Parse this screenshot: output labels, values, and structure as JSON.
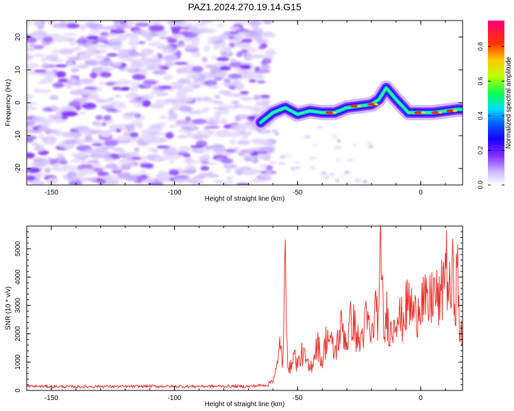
{
  "title": "PAZ1.2024.270.19.14.G15",
  "chart_data": [
    {
      "type": "heatmap",
      "xlabel": "Height of straight line (km)",
      "ylabel": "Frequency (Hz)",
      "xlim": [
        -160,
        17
      ],
      "ylim": [
        -25,
        25
      ],
      "xticks": [
        -150,
        -100,
        -50,
        0
      ],
      "yticks": [
        -20,
        -10,
        0,
        10,
        20
      ],
      "colorbar": {
        "label": "Normalized spectral amplitude",
        "range": [
          0,
          0.95
        ],
        "ticks": [
          "0.0",
          "0.2",
          "0.4",
          "0.6",
          "0.8"
        ],
        "colors": [
          "#ffffff",
          "#9b59ff",
          "#3a00ff",
          "#0033ff",
          "#00ccff",
          "#00ff66",
          "#ccff00",
          "#ffcc00",
          "#ff3300",
          "#ff0066"
        ]
      },
      "noise_region_x": [
        -160,
        -62
      ],
      "signal_ridge": {
        "x": [
          -65,
          -60,
          -55,
          -50,
          -45,
          -40,
          -35,
          -30,
          -25,
          -20,
          -17,
          -14,
          -10,
          -5,
          0,
          5,
          10,
          15,
          17
        ],
        "y": [
          -6,
          -3,
          -1.5,
          -3.5,
          -2.5,
          -3,
          -3,
          -1.5,
          -1,
          -0.5,
          1,
          4.5,
          1,
          -3,
          -3,
          -3,
          -2.5,
          -2,
          -2
        ]
      }
    },
    {
      "type": "line",
      "xlabel": "Height of straight line (km)",
      "ylabel": "SNR (10 * v/v)",
      "xlim": [
        -160,
        17
      ],
      "ylim": [
        0,
        5800
      ],
      "xticks": [
        -150,
        -100,
        -50,
        0
      ],
      "yticks": [
        0,
        1000,
        2000,
        3000,
        4000,
        5000
      ],
      "color": "#e8302a",
      "x": [
        -160,
        -150,
        -140,
        -130,
        -120,
        -110,
        -100,
        -90,
        -80,
        -70,
        -62,
        -60,
        -58,
        -57,
        -56,
        -55,
        -54,
        -53,
        -52,
        -50,
        -48,
        -45,
        -42,
        -40,
        -38,
        -35,
        -32,
        -30,
        -28,
        -25,
        -22,
        -20,
        -18,
        -17,
        -16,
        -15,
        -14,
        -12,
        -10,
        -8,
        -5,
        -2,
        0,
        3,
        5,
        8,
        10,
        12,
        13,
        14,
        15,
        16,
        17
      ],
      "y": [
        150,
        140,
        130,
        145,
        135,
        150,
        140,
        145,
        150,
        140,
        200,
        400,
        900,
        1900,
        800,
        4500,
        1200,
        600,
        1400,
        900,
        1300,
        700,
        1700,
        1000,
        2000,
        1300,
        2300,
        1700,
        2600,
        1600,
        2500,
        1800,
        3100,
        2300,
        5800,
        1400,
        2800,
        2000,
        2900,
        2400,
        3100,
        2600,
        3400,
        2800,
        3500,
        3000,
        4700,
        3200,
        4000,
        3300,
        4100,
        1900,
        1800
      ]
    }
  ]
}
